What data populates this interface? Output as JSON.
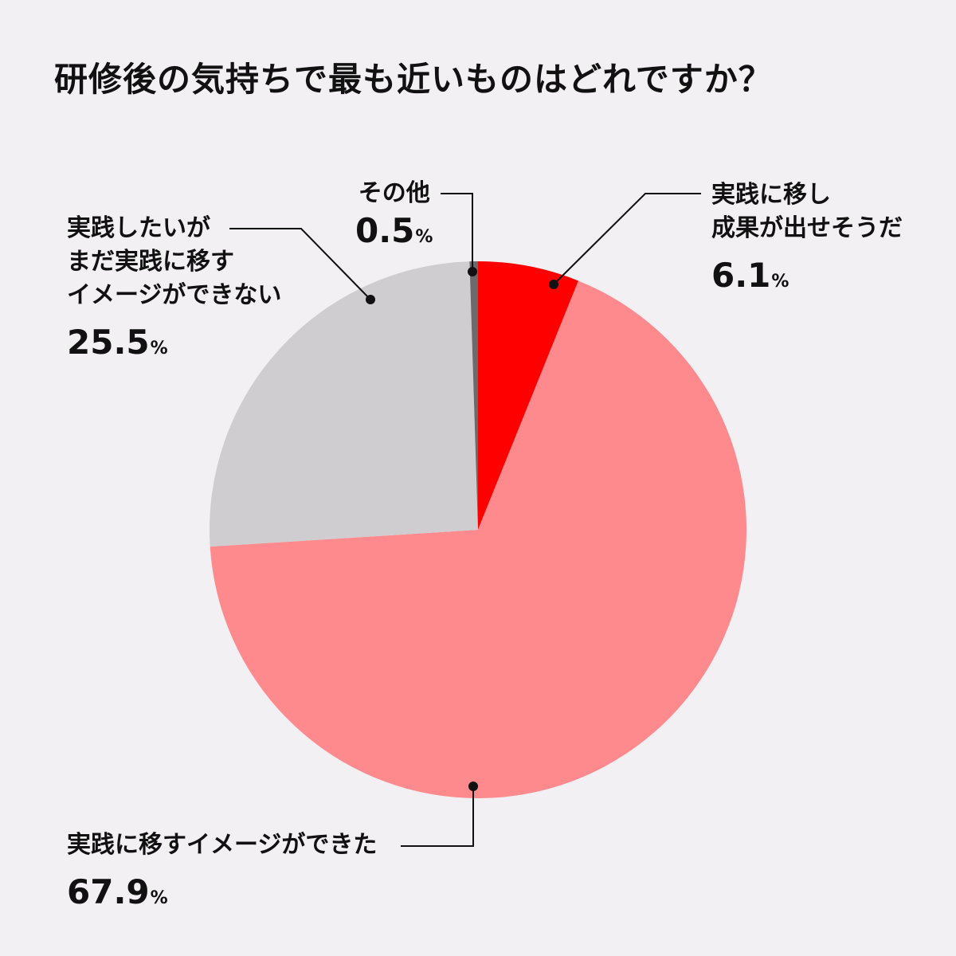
{
  "chart_data": {
    "type": "pie",
    "title": "研修後の気持ちで最も近いものはどれですか？",
    "unit": "%",
    "slices": [
      {
        "key": "practice_done",
        "label": "実践に移し\n成果が出せそうだ",
        "value": 6.1,
        "value_text": "6.1",
        "color": "#ff0000"
      },
      {
        "key": "can_imagine",
        "label": "実践に移すイメージができた",
        "value": 67.9,
        "value_text": "67.9",
        "color": "#ff8a8e"
      },
      {
        "key": "cannot_imagine",
        "label": "実践したいが\nまだ実践に移す\nイメージができない",
        "value": 25.5,
        "value_text": "25.5",
        "color": "#cfcdd0"
      },
      {
        "key": "other",
        "label": "その他",
        "value": 0.5,
        "value_text": "0.5",
        "color": "#6b6b6b"
      }
    ],
    "start_angle": "12 o'clock",
    "direction": "clockwise"
  }
}
